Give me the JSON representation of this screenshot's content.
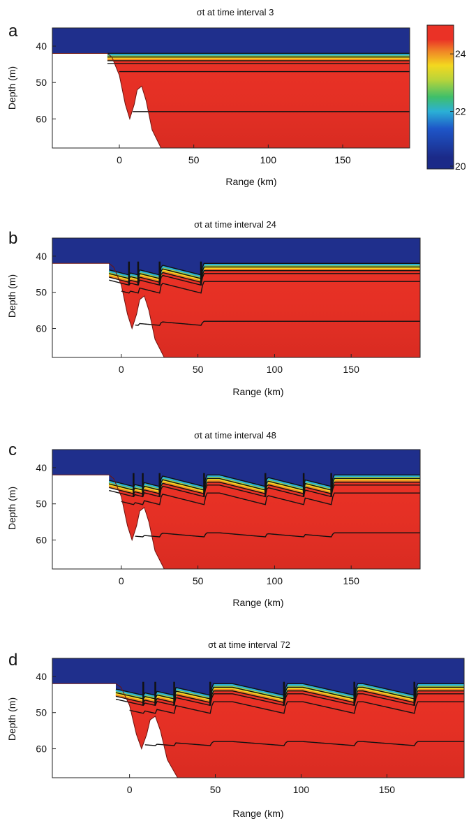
{
  "chart_data": [
    {
      "type": "heatmap",
      "panel_label": "a",
      "title": "σt at time interval 3",
      "xlabel": "Range (km)",
      "ylabel": "Depth (m)",
      "xlim": [
        -45,
        195
      ],
      "ylim": [
        35,
        68
      ],
      "xticks": [
        0,
        50,
        100,
        150
      ],
      "yticks": [
        40,
        50,
        60
      ],
      "colorscale": "jet",
      "fill_color": "#ea3226",
      "surface_color": "#1f2f8c",
      "color_range": [
        20,
        25
      ],
      "colorbar_ticks": [
        20,
        22,
        24
      ],
      "pycnocline_depth_m": 43,
      "contour_depths_m": [
        42,
        43,
        44,
        44.8,
        47,
        58
      ],
      "bathymetry": {
        "x": [
          -45,
          -8,
          -5,
          0,
          4,
          7,
          10,
          12,
          15,
          18,
          22,
          28,
          195
        ],
        "y": [
          42,
          42,
          43,
          48,
          56,
          60,
          56,
          52,
          51,
          55,
          63,
          68,
          68
        ]
      },
      "wave_troughs_km": []
    },
    {
      "type": "heatmap",
      "panel_label": "b",
      "title": "σt at time interval 24",
      "xlabel": "Range (km)",
      "ylabel": "Depth (m)",
      "xlim": [
        -45,
        195
      ],
      "ylim": [
        35,
        68
      ],
      "xticks": [
        0,
        50,
        100,
        150
      ],
      "yticks": [
        40,
        50,
        60
      ],
      "colorscale": "jet",
      "fill_color": "#ea3226",
      "surface_color": "#1f2f8c",
      "contour_depths_m": [
        42,
        43,
        44,
        44.8,
        47,
        58
      ],
      "bathymetry": {
        "x": [
          -45,
          -8,
          -5,
          0,
          4,
          7,
          10,
          12,
          15,
          18,
          22,
          28,
          195
        ],
        "y": [
          42,
          42,
          43,
          48,
          56,
          60,
          56,
          52,
          51,
          55,
          63,
          68,
          68
        ]
      },
      "wave_troughs_km": [
        5,
        11,
        25,
        52
      ]
    },
    {
      "type": "heatmap",
      "panel_label": "c",
      "title": "σt at time interval 48",
      "xlabel": "Range (km)",
      "ylabel": "Depth (m)",
      "xlim": [
        -45,
        195
      ],
      "ylim": [
        35,
        68
      ],
      "xticks": [
        0,
        50,
        100,
        150
      ],
      "yticks": [
        40,
        50,
        60
      ],
      "colorscale": "jet",
      "fill_color": "#ea3226",
      "surface_color": "#1f2f8c",
      "contour_depths_m": [
        42,
        43,
        44,
        44.8,
        47,
        58
      ],
      "bathymetry": {
        "x": [
          -45,
          -8,
          -5,
          0,
          4,
          7,
          10,
          12,
          15,
          18,
          22,
          28,
          195
        ],
        "y": [
          42,
          42,
          43,
          48,
          56,
          60,
          56,
          52,
          51,
          55,
          63,
          68,
          68
        ]
      },
      "wave_troughs_km": [
        8,
        14,
        25,
        54,
        94,
        119,
        137
      ]
    },
    {
      "type": "heatmap",
      "panel_label": "d",
      "title": "σt at time interval 72",
      "xlabel": "Range (km)",
      "ylabel": "Depth (m)",
      "xlim": [
        -45,
        195
      ],
      "ylim": [
        35,
        68
      ],
      "xticks": [
        0,
        50,
        100,
        150
      ],
      "yticks": [
        40,
        50,
        60
      ],
      "colorscale": "jet",
      "fill_color": "#ea3226",
      "surface_color": "#1f2f8c",
      "contour_depths_m": [
        42,
        43,
        44,
        44.8,
        47,
        58
      ],
      "bathymetry": {
        "x": [
          -45,
          -8,
          -5,
          0,
          4,
          7,
          10,
          12,
          15,
          18,
          22,
          28,
          195
        ],
        "y": [
          42,
          42,
          43,
          48,
          56,
          60,
          56,
          52,
          51,
          55,
          63,
          68,
          68
        ]
      },
      "wave_troughs_km": [
        8,
        15,
        26,
        47,
        90,
        131,
        166
      ]
    }
  ]
}
